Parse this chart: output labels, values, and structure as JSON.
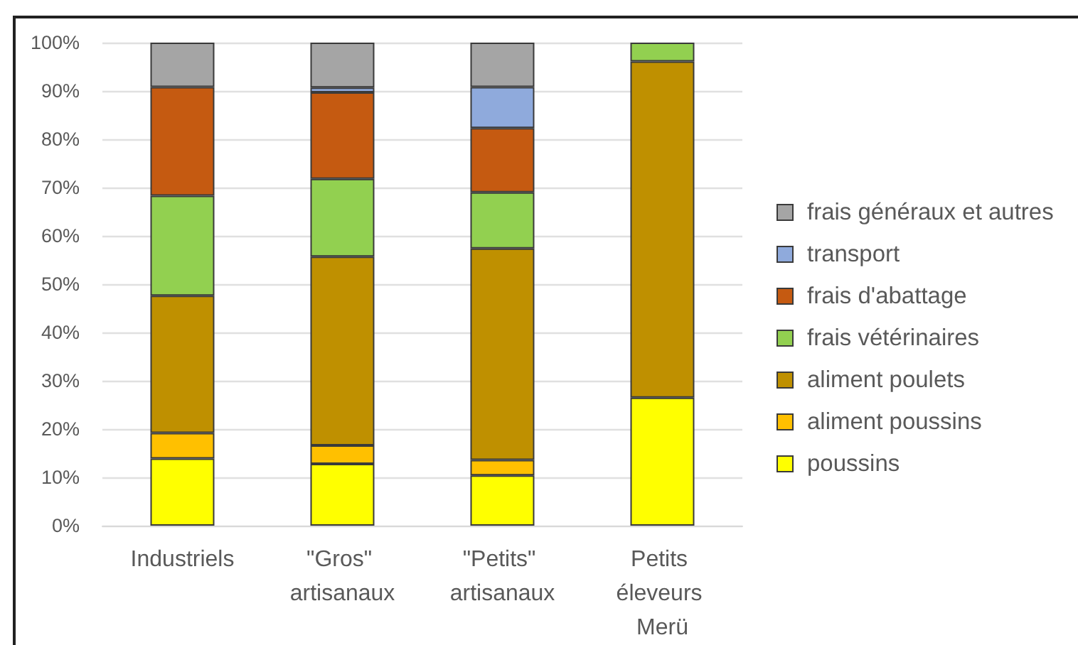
{
  "chart_data": {
    "type": "bar",
    "stacked": true,
    "categories": [
      "Industriels",
      "\"Gros\" artisanaux",
      "\"Petits\" artisanaux",
      "Petits éleveurs Merü"
    ],
    "series": [
      {
        "name": "poussins",
        "color": "#ffff00",
        "values": [
          13.9,
          12.8,
          10.4,
          26.5
        ]
      },
      {
        "name": "aliment poussins",
        "color": "#ffc000",
        "values": [
          5.3,
          3.8,
          3.2,
          null
        ]
      },
      {
        "name": "aliment poulets",
        "color": "#bf9000",
        "values": [
          28.4,
          39.1,
          43.8,
          69.6
        ]
      },
      {
        "name": "frais vétérinaires",
        "color": "#92d050",
        "values": [
          20.7,
          16.1,
          11.6,
          3.9
        ]
      },
      {
        "name": "frais d'abattage",
        "color": "#c55a11",
        "values": [
          22.5,
          17.9,
          13.3,
          null
        ]
      },
      {
        "name": "transport",
        "color": "#8faadc",
        "values": [
          null,
          1.0,
          8.5,
          null
        ]
      },
      {
        "name": "frais généraux et autres",
        "color": "#a5a5a5",
        "values": [
          9.2,
          9.3,
          9.2,
          null
        ]
      }
    ],
    "ylim": [
      0,
      100
    ],
    "yticks": [
      {
        "value": 0,
        "label": "0%"
      },
      {
        "value": 10,
        "label": "10%"
      },
      {
        "value": 20,
        "label": "20%"
      },
      {
        "value": 30,
        "label": "30%"
      },
      {
        "value": 40,
        "label": "40%"
      },
      {
        "value": 50,
        "label": "50%"
      },
      {
        "value": 60,
        "label": "60%"
      },
      {
        "value": 70,
        "label": "70%"
      },
      {
        "value": 80,
        "label": "80%"
      },
      {
        "value": 90,
        "label": "90%"
      },
      {
        "value": 100,
        "label": "100%"
      }
    ],
    "grid": "y",
    "legend": "right"
  }
}
